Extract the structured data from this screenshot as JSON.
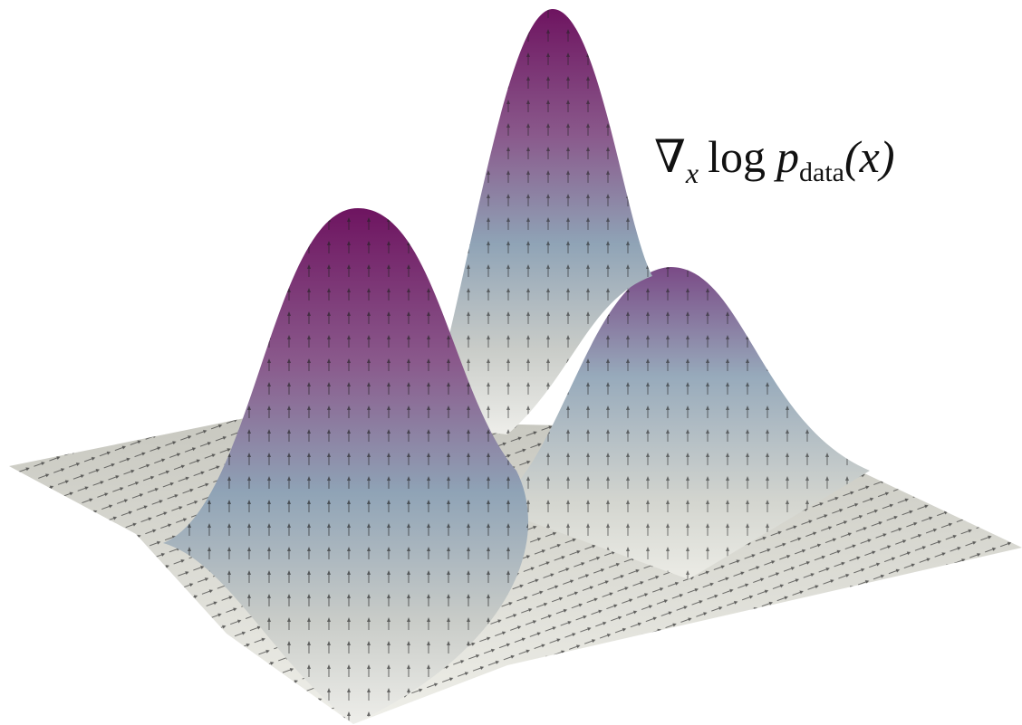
{
  "label": {
    "operator": "∇",
    "subscript": "x",
    "function": "log",
    "variable": "p",
    "variable_subscript": "data",
    "argument": "(x)"
  }
}
